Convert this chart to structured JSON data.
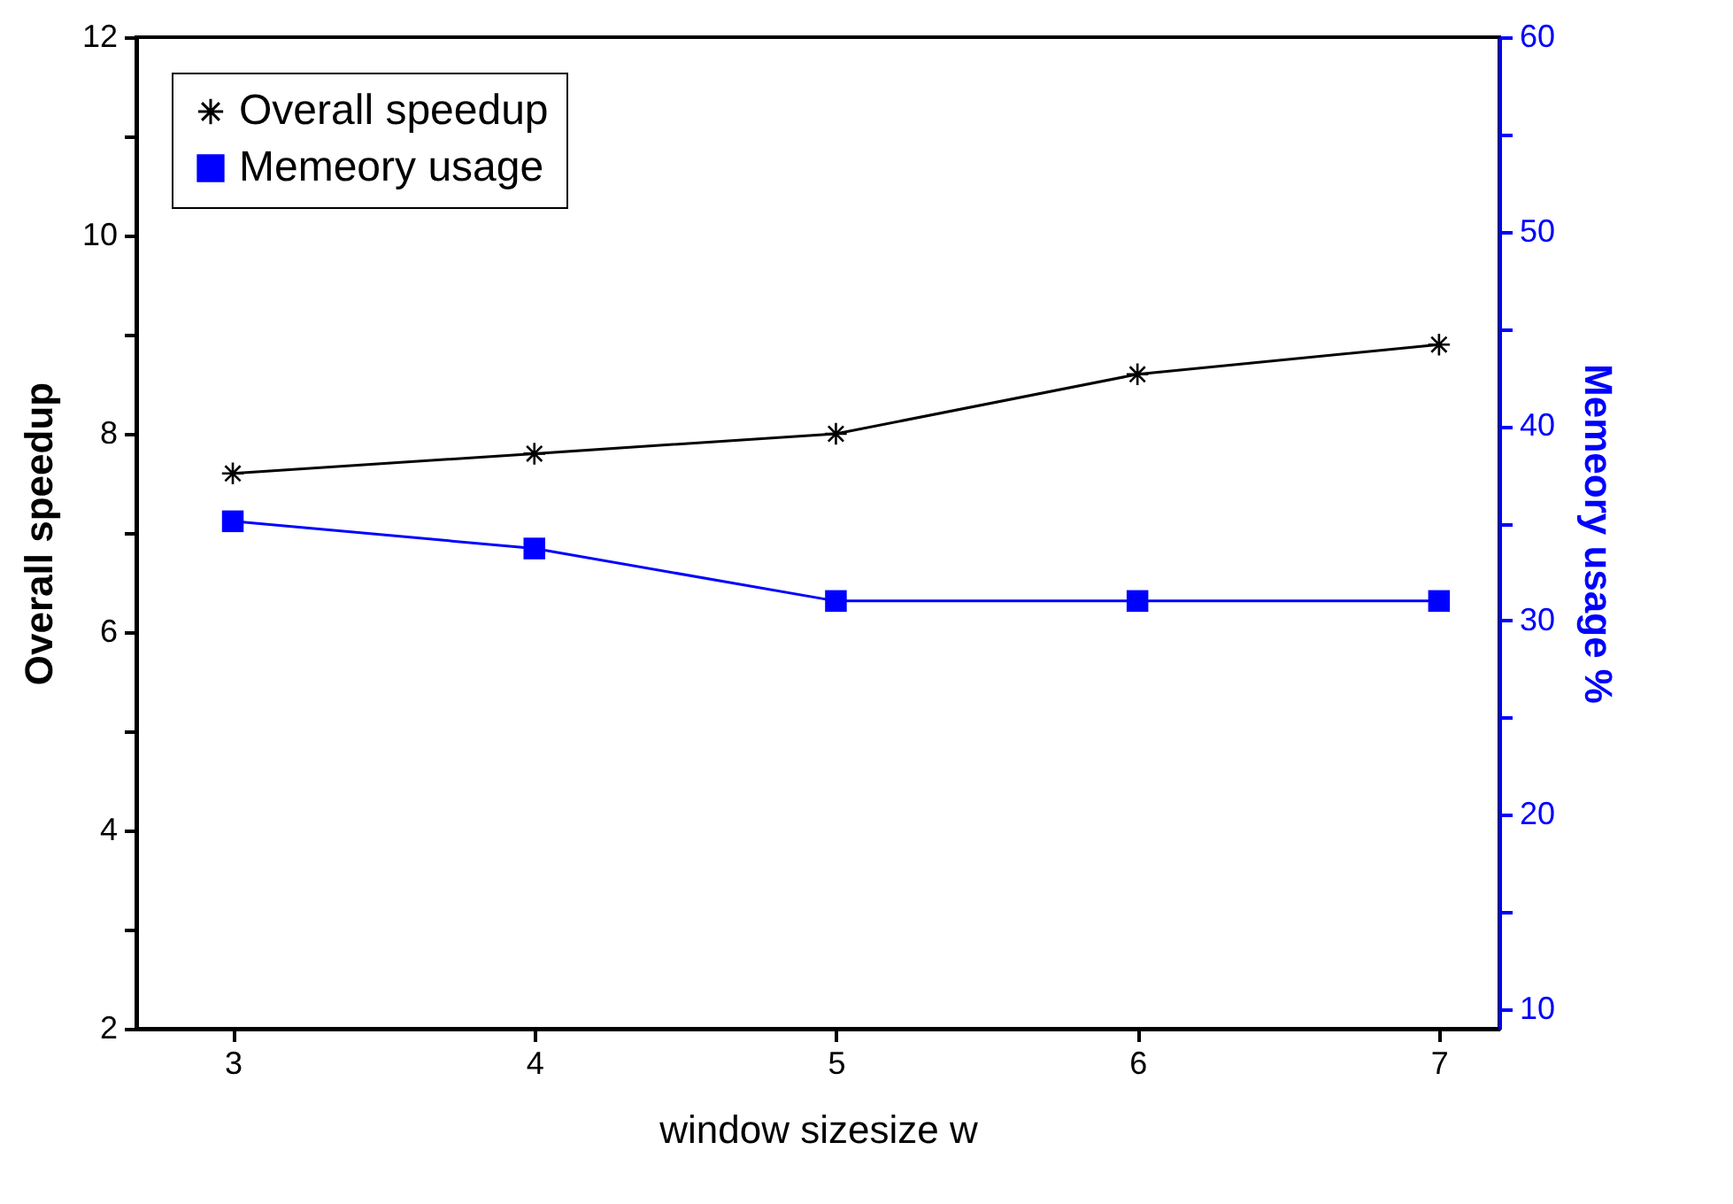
{
  "chart_data": {
    "type": "line",
    "xlabel": "window sizesize w",
    "ylabel": "Overall speedup",
    "y2label": "Memeory usage %",
    "x": [
      3,
      4,
      5,
      6,
      7
    ],
    "series": [
      {
        "name": "Overall speedup",
        "color": "#000000",
        "marker": "cross",
        "values": [
          7.6,
          7.8,
          8.0,
          8.6,
          8.9
        ]
      },
      {
        "name": "Memeory usage",
        "color": "#0000ff",
        "marker": "square",
        "axis": "y2",
        "values": [
          35.1,
          33.7,
          31.0,
          31.0,
          31.0
        ]
      }
    ],
    "xlim": [
      2.68,
      7.2
    ],
    "xticks": [
      3,
      4,
      5,
      6,
      7
    ],
    "ylim": [
      2,
      12
    ],
    "yticks": [
      2,
      {
        "value": 3,
        "label": null
      },
      4,
      {
        "value": 5,
        "label": null
      },
      6,
      {
        "value": 7,
        "label": null
      },
      8,
      {
        "value": 9,
        "label": null
      },
      10,
      {
        "value": 11,
        "label": null
      },
      12
    ],
    "y2lim": [
      9,
      60
    ],
    "y2ticks": [
      10,
      {
        "value": 15,
        "label": null
      },
      20,
      {
        "value": 25,
        "label": null
      },
      30,
      {
        "value": 35,
        "label": null
      },
      40,
      {
        "value": 45,
        "label": null
      },
      50,
      {
        "value": 55,
        "label": null
      },
      60
    ],
    "legend": "top left",
    "grid": false,
    "line_style": "solid"
  }
}
